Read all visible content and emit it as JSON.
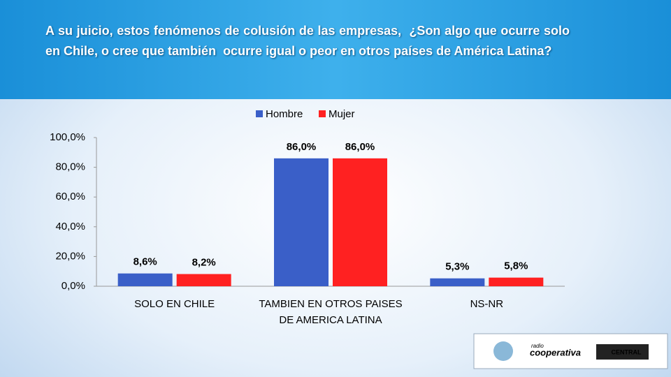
{
  "chart_data": {
    "type": "bar",
    "title": "A su juicio, estos fenómenos de colusión de las empresas,  ¿Son algo que ocurre solo en Chile, o cree que también  ocurre igual o peor en otros países de América Latina?",
    "categories": [
      "SOLO EN CHILE",
      "TAMBIEN EN OTROS PAISES DE AMERICA LATINA",
      "NS-NR"
    ],
    "series": [
      {
        "name": "Hombre",
        "color": "#3a5fc8",
        "values": [
          8.6,
          86.0,
          5.3
        ],
        "value_labels": [
          "8,6%",
          "86,0%",
          "5,3%"
        ]
      },
      {
        "name": "Mujer",
        "color": "#ff2121",
        "values": [
          8.2,
          86.0,
          5.8
        ],
        "value_labels": [
          "8,2%",
          "86,0%",
          "5,8%"
        ]
      }
    ],
    "ylim": [
      0,
      100
    ],
    "yticks": [
      {
        "value": 0,
        "label": "0,0%"
      },
      {
        "value": 20,
        "label": "20,0%"
      },
      {
        "value": 40,
        "label": "40,0%"
      },
      {
        "value": 60,
        "label": "60,0%"
      },
      {
        "value": 80,
        "label": "80,0%"
      },
      {
        "value": 100,
        "label": "100,0%"
      }
    ],
    "legend": "top"
  },
  "logos": {
    "radio": "radio",
    "cooperativa": "cooperativa",
    "university": "CENTRAL"
  }
}
